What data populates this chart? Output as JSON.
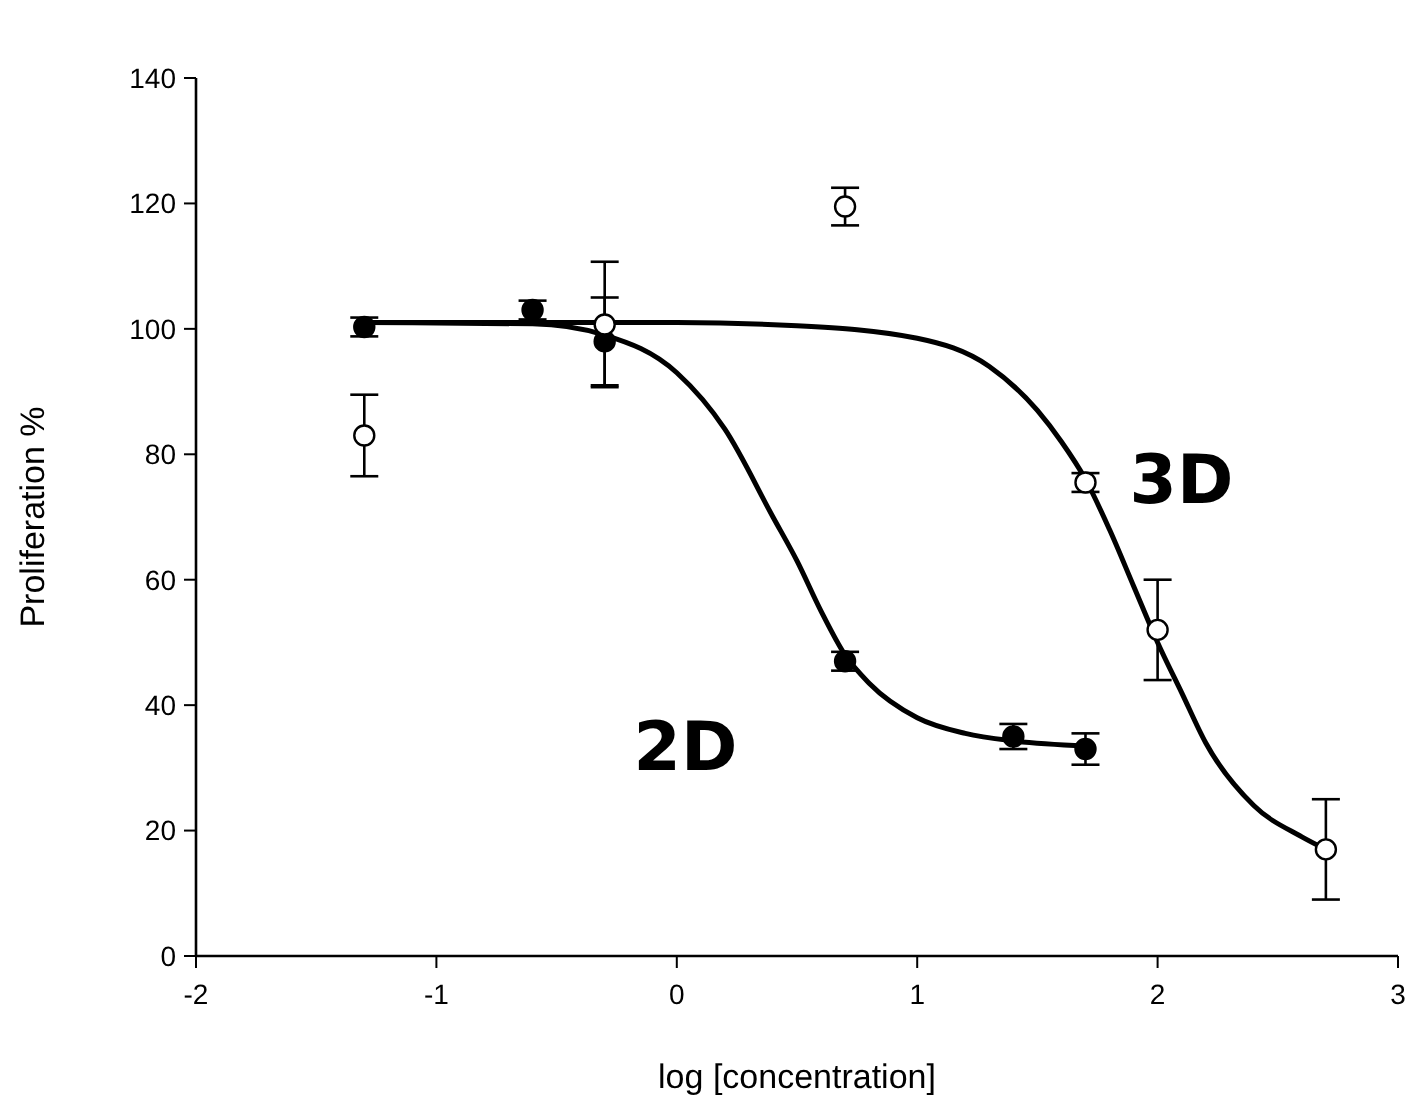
{
  "chart_data": {
    "type": "scatter",
    "xlabel": "log [concentration]",
    "ylabel": "Proliferation %",
    "xlim": [
      -2,
      3
    ],
    "ylim": [
      0,
      140
    ],
    "xticks": [
      -2,
      -1,
      0,
      1,
      2,
      3
    ],
    "yticks": [
      0,
      20,
      40,
      60,
      80,
      100,
      120,
      140
    ],
    "grid": false,
    "marker": "circle",
    "series": [
      {
        "type": "line",
        "name": "2D",
        "color": "#000000",
        "line_style": "solid",
        "marker": "none",
        "x": [
          -1.3,
          -0.6,
          -0.3,
          0,
          0.2,
          0.4,
          0.5,
          0.6,
          0.7,
          0.8,
          1.0,
          1.2,
          1.4,
          1.7
        ],
        "values": [
          101,
          100.8,
          99,
          93,
          84,
          70,
          63,
          55,
          48,
          43.5,
          38,
          35.5,
          34.3,
          33.5
        ]
      },
      {
        "type": "line",
        "name": "3D",
        "color": "#000000",
        "line_style": "solid",
        "marker": "none",
        "x": [
          -1.3,
          0,
          0.5,
          1.0,
          1.3,
          1.5,
          1.6,
          1.7,
          1.8,
          1.9,
          2.0,
          2.1,
          2.2,
          2.4,
          2.6,
          2.7
        ],
        "values": [
          101,
          101,
          100.5,
          98.5,
          94,
          87,
          82,
          76,
          68,
          59,
          50,
          42,
          34,
          24,
          19,
          17
        ]
      },
      {
        "color": "#000000",
        "x": [
          -1.3,
          -0.6,
          -0.3,
          0.7,
          1.4,
          1.7
        ],
        "values": [
          100.3,
          103,
          98,
          47,
          35,
          33
        ],
        "errors": [
          1.5,
          1.5,
          7,
          1.5,
          2,
          2.5
        ]
      },
      {
        "color": "#ffffff",
        "x": [
          -1.3,
          -0.3,
          0.7,
          1.7,
          2.0,
          2.7
        ],
        "values": [
          83,
          100.7,
          119.5,
          75.5,
          52,
          17
        ],
        "errors": [
          6.5,
          10,
          3,
          1.5,
          8,
          8
        ]
      }
    ]
  }
}
